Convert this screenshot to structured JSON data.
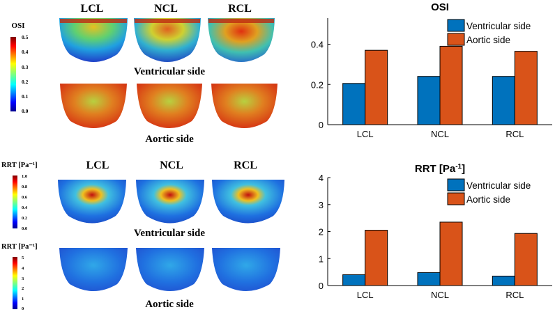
{
  "left_panels": {
    "osi": {
      "colorbar_title": "OSI",
      "colorbar_ticks": [
        "0.5",
        "0.4",
        "0.3",
        "0.2",
        "0.1",
        "0.0"
      ],
      "columns": [
        "LCL",
        "NCL",
        "RCL"
      ],
      "row_labels": [
        "Ventricular side",
        "Aortic side"
      ]
    },
    "rrt": {
      "colorbar_title_ventricular": "RRT [Pa⁻¹]",
      "colorbar_ticks_ventricular": [
        "1.0",
        "0.8",
        "0.6",
        "0.4",
        "0.2",
        "0.0"
      ],
      "colorbar_title_aortic": "RRT [Pa⁻¹]",
      "colorbar_ticks_aortic": [
        "5",
        "4",
        "3",
        "2",
        "1",
        "0"
      ],
      "columns": [
        "LCL",
        "NCL",
        "RCL"
      ],
      "row_labels": [
        "Ventricular side",
        "Aortic side"
      ]
    }
  },
  "chart_data": [
    {
      "type": "bar",
      "title": "OSI",
      "categories": [
        "LCL",
        "NCL",
        "RCL"
      ],
      "series": [
        {
          "name": "Ventricular side",
          "values": [
            0.205,
            0.24,
            0.24
          ]
        },
        {
          "name": "Aortic side",
          "values": [
            0.37,
            0.39,
            0.365
          ]
        }
      ],
      "ylim": [
        0,
        0.53
      ],
      "yticks": [
        0,
        0.2,
        0.4
      ],
      "ytick_labels": [
        "0",
        "0.2",
        "0.4"
      ],
      "xlabel": "",
      "ylabel": "",
      "legend": "top-right",
      "colors": [
        "#0072BD",
        "#D95319"
      ]
    },
    {
      "type": "bar",
      "title": "RRT [Pa",
      "title_sup": "-1",
      "title_close": "]",
      "categories": [
        "LCL",
        "NCL",
        "RCL"
      ],
      "series": [
        {
          "name": "Ventricular side",
          "values": [
            0.4,
            0.48,
            0.35
          ]
        },
        {
          "name": "Aortic side",
          "values": [
            2.05,
            2.35,
            1.93
          ]
        }
      ],
      "ylim": [
        0,
        4
      ],
      "yticks": [
        0,
        1,
        2,
        3,
        4
      ],
      "ytick_labels": [
        "0",
        "1",
        "2",
        "3",
        "4"
      ],
      "xlabel": "",
      "ylabel": "",
      "legend": "top-right",
      "colors": [
        "#0072BD",
        "#D95319"
      ]
    }
  ]
}
